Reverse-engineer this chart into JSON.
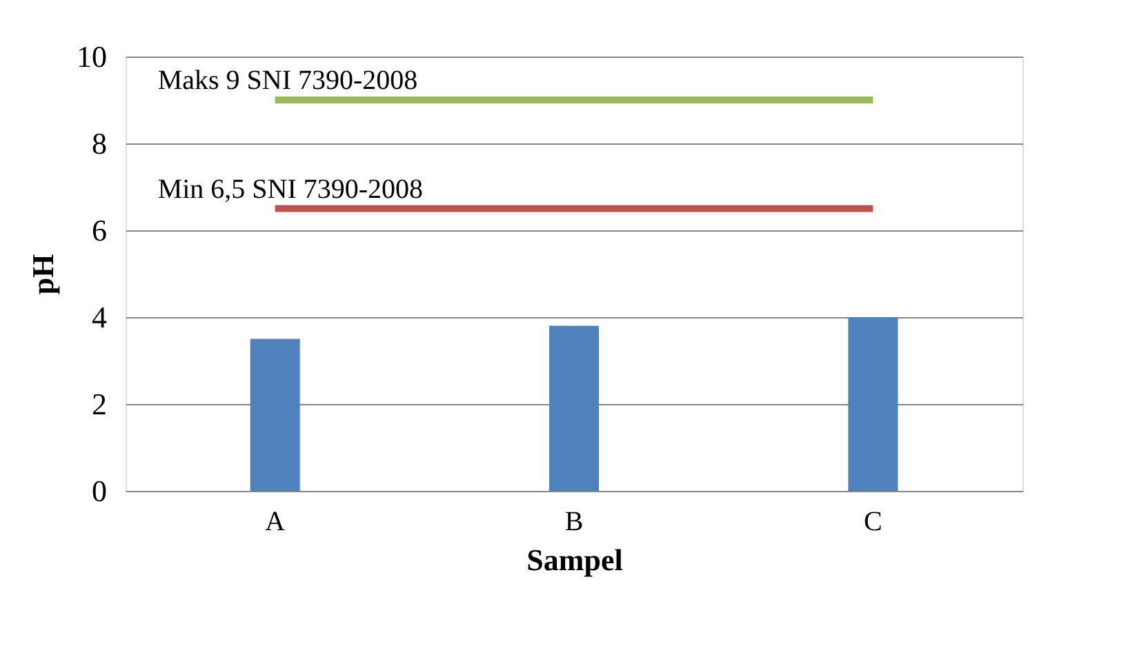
{
  "chart_data": {
    "type": "bar",
    "xlabel": "Sampel",
    "ylabel": "pH",
    "categories": [
      "A",
      "B",
      "C"
    ],
    "series": [
      {
        "color": "#4f81bd",
        "values": [
          3.5,
          3.8,
          4.0
        ]
      },
      {
        "type": "line",
        "name": "Maks 9 SNI 7390-2008",
        "color": "#9bbb59",
        "values": [
          9,
          9,
          9
        ]
      },
      {
        "type": "line",
        "name": "Min 6,5 SNI 7390-2008",
        "color": "#c0504d",
        "values": [
          6.5,
          6.5,
          6.5
        ]
      }
    ],
    "ylim": [
      0,
      10
    ],
    "yticks": [
      0,
      2,
      4,
      6,
      8,
      10
    ],
    "grid": "y"
  }
}
